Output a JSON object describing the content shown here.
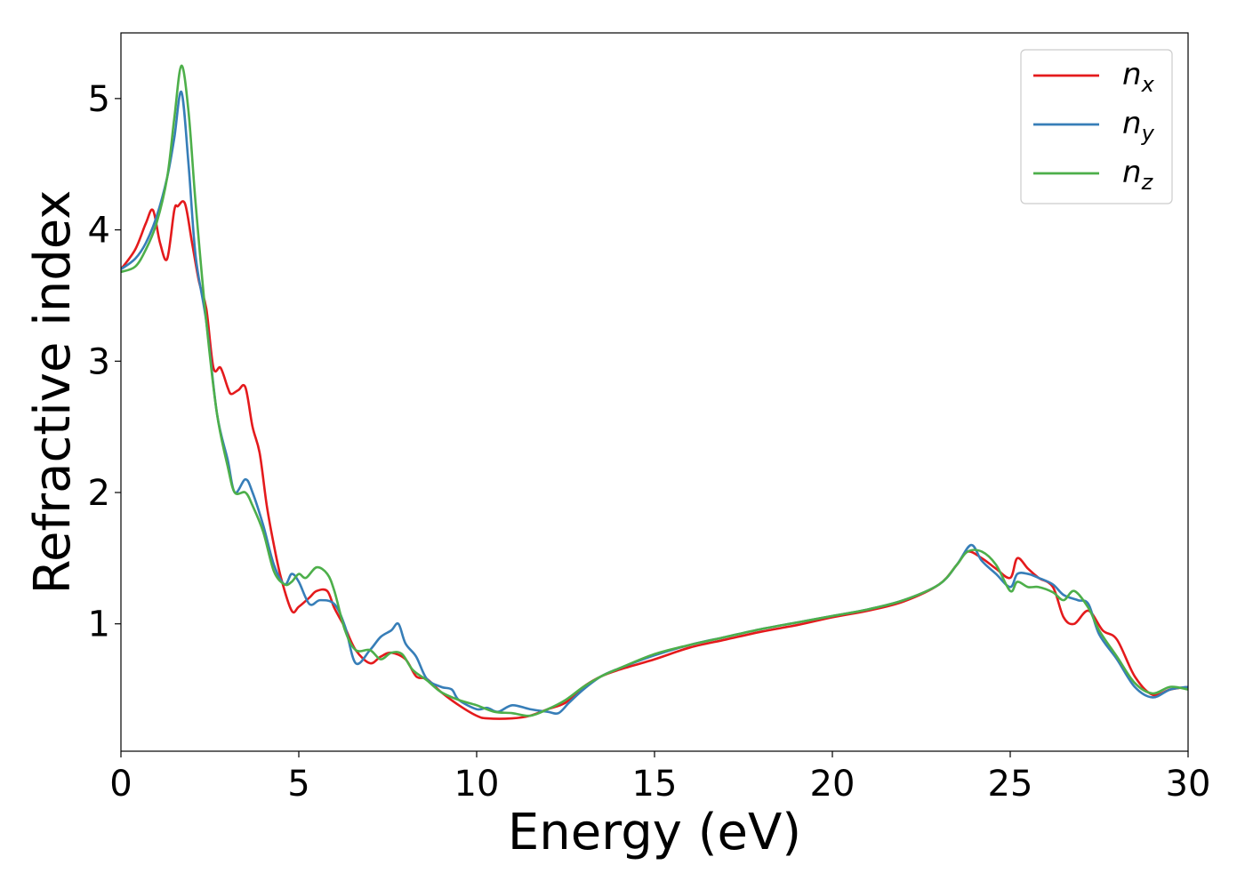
{
  "chart_data": {
    "type": "line",
    "xlabel": "Energy (eV)",
    "ylabel": "Refractive index",
    "xlim": [
      0,
      30
    ],
    "ylim": [
      0.03,
      5.5
    ],
    "xticks": [
      0,
      5,
      10,
      15,
      20,
      25,
      30
    ],
    "yticks": [
      1,
      2,
      3,
      4,
      5
    ],
    "grid": false,
    "legend": "top-right",
    "series": [
      {
        "name": "n",
        "subscript": "x",
        "color": "#e41a1c",
        "x": [
          0,
          0.4,
          0.7,
          0.9,
          1.1,
          1.3,
          1.5,
          1.6,
          1.8,
          2.0,
          2.2,
          2.4,
          2.6,
          2.8,
          3.0,
          3.1,
          3.3,
          3.5,
          3.7,
          3.9,
          4.1,
          4.3,
          4.5,
          4.8,
          5.0,
          5.3,
          5.5,
          5.8,
          6.0,
          6.3,
          6.6,
          7.0,
          7.3,
          7.6,
          8.0,
          8.3,
          8.6,
          9.0,
          9.5,
          10.0,
          10.3,
          11.0,
          11.5,
          12.0,
          12.5,
          13.0,
          13.5,
          14.0,
          15.0,
          16.0,
          17.0,
          18.0,
          19.0,
          20.0,
          21.0,
          22.0,
          23.0,
          23.5,
          23.8,
          24.2,
          24.6,
          25.0,
          25.2,
          25.5,
          25.8,
          26.2,
          26.5,
          26.8,
          27.2,
          27.6,
          28.0,
          28.5,
          29.0,
          29.5,
          30.0
        ],
        "values": [
          3.7,
          3.85,
          4.05,
          4.15,
          3.9,
          3.78,
          4.15,
          4.18,
          4.2,
          3.9,
          3.6,
          3.4,
          2.95,
          2.95,
          2.8,
          2.75,
          2.78,
          2.8,
          2.5,
          2.3,
          1.9,
          1.6,
          1.35,
          1.1,
          1.13,
          1.2,
          1.25,
          1.25,
          1.12,
          0.97,
          0.8,
          0.7,
          0.75,
          0.78,
          0.73,
          0.6,
          0.58,
          0.48,
          0.38,
          0.3,
          0.28,
          0.28,
          0.3,
          0.35,
          0.4,
          0.52,
          0.6,
          0.65,
          0.73,
          0.82,
          0.88,
          0.94,
          0.99,
          1.05,
          1.1,
          1.17,
          1.3,
          1.45,
          1.55,
          1.5,
          1.42,
          1.35,
          1.5,
          1.42,
          1.35,
          1.28,
          1.05,
          1.0,
          1.1,
          0.95,
          0.88,
          0.6,
          0.46,
          0.5,
          0.52
        ]
      },
      {
        "name": "n",
        "subscript": "y",
        "color": "#377eb8",
        "x": [
          0,
          0.4,
          0.7,
          1.0,
          1.3,
          1.5,
          1.7,
          1.9,
          2.1,
          2.4,
          2.7,
          3.0,
          3.2,
          3.5,
          3.7,
          4.0,
          4.3,
          4.6,
          4.8,
          5.0,
          5.3,
          5.6,
          6.0,
          6.3,
          6.6,
          7.0,
          7.3,
          7.6,
          7.8,
          8.0,
          8.3,
          8.6,
          9.0,
          9.3,
          9.5,
          10.0,
          10.3,
          10.6,
          11.0,
          11.5,
          12.0,
          12.3,
          12.6,
          13.0,
          13.5,
          14.0,
          15.0,
          16.0,
          17.0,
          18.0,
          19.0,
          20.0,
          21.0,
          22.0,
          23.0,
          23.5,
          23.9,
          24.2,
          24.6,
          25.0,
          25.2,
          25.5,
          25.8,
          26.2,
          26.5,
          26.9,
          27.2,
          27.5,
          28.0,
          28.5,
          29.0,
          29.5,
          30.0
        ],
        "values": [
          3.7,
          3.78,
          3.9,
          4.1,
          4.4,
          4.7,
          5.05,
          4.5,
          3.8,
          3.3,
          2.6,
          2.25,
          2.0,
          2.1,
          2.0,
          1.75,
          1.45,
          1.3,
          1.38,
          1.32,
          1.15,
          1.18,
          1.15,
          0.98,
          0.7,
          0.8,
          0.9,
          0.95,
          1.0,
          0.85,
          0.75,
          0.58,
          0.52,
          0.5,
          0.42,
          0.35,
          0.36,
          0.33,
          0.38,
          0.35,
          0.33,
          0.32,
          0.4,
          0.5,
          0.6,
          0.66,
          0.76,
          0.84,
          0.9,
          0.96,
          1.01,
          1.06,
          1.11,
          1.18,
          1.3,
          1.45,
          1.6,
          1.48,
          1.38,
          1.28,
          1.38,
          1.38,
          1.35,
          1.3,
          1.22,
          1.18,
          1.15,
          0.92,
          0.73,
          0.52,
          0.44,
          0.5,
          0.52
        ]
      },
      {
        "name": "n",
        "subscript": "z",
        "color": "#4daf4a",
        "x": [
          0,
          0.4,
          0.7,
          1.0,
          1.3,
          1.5,
          1.7,
          1.9,
          2.1,
          2.4,
          2.7,
          3.0,
          3.2,
          3.5,
          3.7,
          4.0,
          4.3,
          4.6,
          4.8,
          5.0,
          5.2,
          5.5,
          5.8,
          6.0,
          6.3,
          6.6,
          7.0,
          7.3,
          7.6,
          7.9,
          8.2,
          8.6,
          9.0,
          9.5,
          10.0,
          10.5,
          11.0,
          11.5,
          12.0,
          12.5,
          13.0,
          13.5,
          14.0,
          15.0,
          16.0,
          17.0,
          18.0,
          19.0,
          20.0,
          21.0,
          22.0,
          23.0,
          23.5,
          23.8,
          24.2,
          24.6,
          25.0,
          25.2,
          25.5,
          25.8,
          26.2,
          26.5,
          26.8,
          27.2,
          27.5,
          28.0,
          28.5,
          29.0,
          29.5,
          30.0
        ],
        "values": [
          3.68,
          3.72,
          3.85,
          4.05,
          4.4,
          4.85,
          5.25,
          4.9,
          4.2,
          3.3,
          2.6,
          2.2,
          2.0,
          2.0,
          1.9,
          1.7,
          1.4,
          1.3,
          1.32,
          1.38,
          1.35,
          1.43,
          1.38,
          1.25,
          0.95,
          0.8,
          0.8,
          0.73,
          0.78,
          0.77,
          0.65,
          0.57,
          0.48,
          0.42,
          0.38,
          0.33,
          0.32,
          0.3,
          0.35,
          0.42,
          0.52,
          0.6,
          0.66,
          0.77,
          0.84,
          0.9,
          0.96,
          1.01,
          1.06,
          1.11,
          1.18,
          1.3,
          1.45,
          1.55,
          1.55,
          1.45,
          1.25,
          1.32,
          1.28,
          1.28,
          1.24,
          1.18,
          1.25,
          1.12,
          0.95,
          0.75,
          0.55,
          0.47,
          0.52,
          0.5
        ]
      }
    ]
  }
}
